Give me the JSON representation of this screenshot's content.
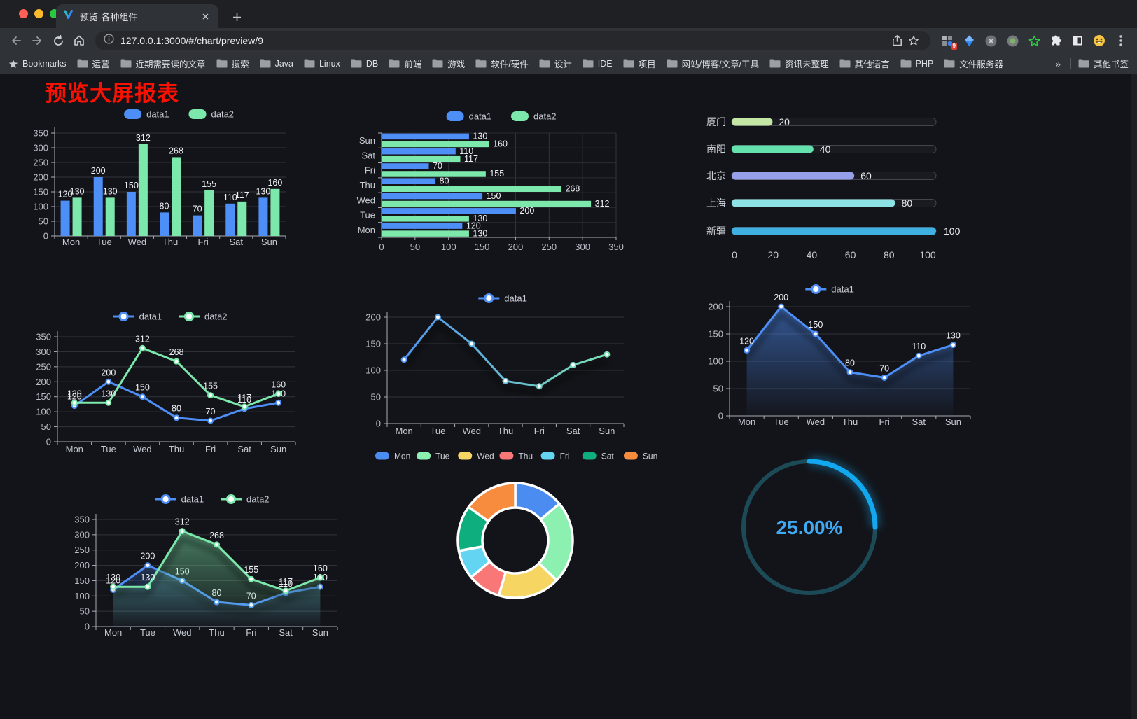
{
  "browser": {
    "tab_title": "预览-各种组件",
    "url": "127.0.0.1:3000/#/chart/preview/9",
    "bookmarks_label": "Bookmarks",
    "bookmarks": [
      "运营",
      "近期需要读的文章",
      "搜索",
      "Java",
      "Linux",
      "DB",
      "前端",
      "游戏",
      "软件/硬件",
      "设计",
      "IDE",
      "项目",
      "网站/博客/文章/工具",
      "资讯未整理",
      "其他语言",
      "PHP",
      "文件服务器"
    ],
    "overflow_chevron": "»",
    "other_bookmarks": "其他书签",
    "ext_badge": "9"
  },
  "page": {
    "title": "预览大屏报表"
  },
  "chart_data": [
    {
      "type": "bar",
      "categories": [
        "Mon",
        "Tue",
        "Wed",
        "Thu",
        "Fri",
        "Sat",
        "Sun"
      ],
      "series": [
        {
          "name": "data1",
          "color": "#4e8ef7",
          "values": [
            120,
            200,
            150,
            80,
            70,
            110,
            130
          ]
        },
        {
          "name": "data2",
          "color": "#7de8ac",
          "values": [
            130,
            130,
            312,
            268,
            155,
            117,
            160
          ]
        }
      ],
      "ylim": [
        0,
        350
      ],
      "ytick": 50,
      "legend_position": "top",
      "labels": true,
      "grid": true
    },
    {
      "type": "bar",
      "orientation": "horizontal",
      "categories": [
        "Mon",
        "Tue",
        "Wed",
        "Thu",
        "Fri",
        "Sat",
        "Sun"
      ],
      "series": [
        {
          "name": "data1",
          "color": "#4e8ef7",
          "values": [
            120,
            200,
            150,
            80,
            70,
            110,
            130
          ]
        },
        {
          "name": "data2",
          "color": "#7de8ac",
          "values": [
            130,
            130,
            312,
            268,
            155,
            117,
            160
          ]
        }
      ],
      "xlim": [
        0,
        350
      ],
      "xtick": 50,
      "legend_position": "top",
      "labels": true,
      "grid": true
    },
    {
      "type": "progress",
      "max": 100,
      "xticks": [
        0,
        20,
        40,
        60,
        80,
        100
      ],
      "items": [
        {
          "label": "厦门",
          "value": 20,
          "color": "#c4e8a4"
        },
        {
          "label": "南阳",
          "value": 40,
          "color": "#63e2ae"
        },
        {
          "label": "北京",
          "value": 60,
          "color": "#96a0ea"
        },
        {
          "label": "上海",
          "value": 80,
          "color": "#8ce2e4"
        },
        {
          "label": "新疆",
          "value": 100,
          "color": "#3fb0e2"
        }
      ]
    },
    {
      "type": "line",
      "categories": [
        "Mon",
        "Tue",
        "Wed",
        "Thu",
        "Fri",
        "Sat",
        "Sun"
      ],
      "series": [
        {
          "name": "data1",
          "color": "#4e8ef7",
          "values": [
            120,
            200,
            150,
            80,
            70,
            110,
            130
          ]
        },
        {
          "name": "data2",
          "color": "#7de8ac",
          "values": [
            130,
            130,
            312,
            268,
            155,
            117,
            160
          ]
        }
      ],
      "ylim": [
        0,
        350
      ],
      "ytick": 50,
      "legend_position": "top",
      "labels": true
    },
    {
      "type": "line",
      "categories": [
        "Mon",
        "Tue",
        "Wed",
        "Thu",
        "Fri",
        "Sat",
        "Sun"
      ],
      "series": [
        {
          "name": "data1",
          "color": "#4e8ef7",
          "values": [
            120,
            200,
            150,
            80,
            70,
            110,
            130
          ]
        }
      ],
      "ylim": [
        0,
        200
      ],
      "ytick": 50,
      "legend_position": "top",
      "labels": false,
      "shadow": true,
      "gradient_stroke": [
        "#4e8ef7",
        "#7de8ac"
      ]
    },
    {
      "type": "line",
      "categories": [
        "Mon",
        "Tue",
        "Wed",
        "Thu",
        "Fri",
        "Sat",
        "Sun"
      ],
      "series": [
        {
          "name": "data1",
          "color": "#4e8ef7",
          "values": [
            120,
            200,
            150,
            80,
            70,
            110,
            130
          ],
          "area": true
        }
      ],
      "ylim": [
        0,
        200
      ],
      "ytick": 50,
      "legend_position": "top",
      "labels": true,
      "shadow": true
    },
    {
      "type": "line",
      "categories": [
        "Mon",
        "Tue",
        "Wed",
        "Thu",
        "Fri",
        "Sat",
        "Sun"
      ],
      "series": [
        {
          "name": "data1",
          "color": "#4e8ef7",
          "values": [
            120,
            200,
            150,
            80,
            70,
            110,
            130
          ],
          "area": true
        },
        {
          "name": "data2",
          "color": "#7de8ac",
          "values": [
            130,
            130,
            312,
            268,
            155,
            117,
            160
          ],
          "area": true
        }
      ],
      "ylim": [
        0,
        350
      ],
      "ytick": 50,
      "legend_position": "top",
      "labels": true,
      "shadow": true
    },
    {
      "type": "pie",
      "categories": [
        "Mon",
        "Tue",
        "Wed",
        "Thu",
        "Fri",
        "Sat",
        "Sun"
      ],
      "values": [
        120,
        200,
        150,
        80,
        70,
        110,
        130
      ],
      "colors": [
        "#4a8cf0",
        "#8cf0b1",
        "#f6d563",
        "#f97777",
        "#63d5f2",
        "#0fae7e",
        "#f78c3e"
      ],
      "legend_position": "top"
    },
    {
      "type": "gauge",
      "percent": 25,
      "display": "25.00%",
      "arc_color": "#12a8f0",
      "track_color": "#1d4a57",
      "text_color": "#3fa9f1"
    }
  ]
}
